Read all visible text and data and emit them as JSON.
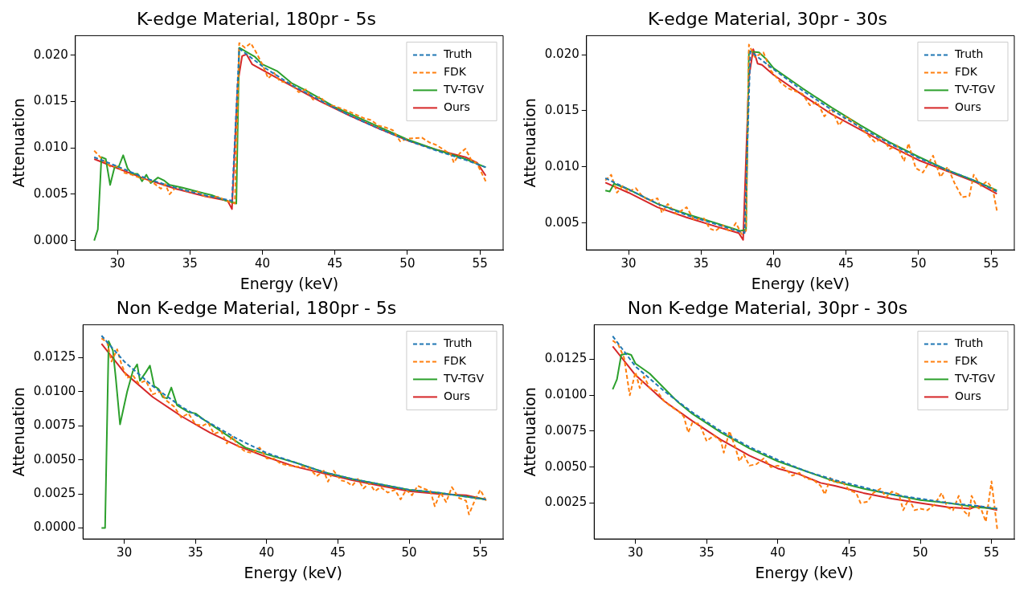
{
  "chart_data": [
    {
      "type": "line",
      "title": "K-edge Material, 180pr - 5s",
      "xlabel": "Energy (keV)",
      "ylabel": "Attenuation",
      "legend": "top right",
      "grid": false,
      "xlim": [
        27.1,
        56.6
      ],
      "xticks": [
        30,
        35,
        40,
        45,
        50,
        55
      ],
      "ylim": [
        -0.001,
        0.0221
      ],
      "yticks": [
        {
          "value": 0,
          "label": "0.000"
        },
        {
          "value": 0.005,
          "label": "0.005"
        },
        {
          "value": 0.01,
          "label": "0.010"
        },
        {
          "value": 0.015,
          "label": "0.015"
        },
        {
          "value": 0.02,
          "label": "0.020"
        }
      ],
      "series": [
        {
          "name": "Truth",
          "color": "#1f77b4",
          "line_style": "dashed",
          "x": [
            28.4,
            30,
            32,
            34,
            36,
            37.9,
            38.4,
            40,
            42,
            44,
            46,
            48,
            50,
            52,
            54,
            55.4
          ],
          "values": [
            0.009,
            0.008,
            0.0067,
            0.0057,
            0.0049,
            0.0043,
            0.0207,
            0.0188,
            0.0168,
            0.0151,
            0.0135,
            0.0121,
            0.0108,
            0.0097,
            0.0087,
            0.0079
          ]
        },
        {
          "name": "FDK",
          "color": "#ff7f0e",
          "line_style": "dashed",
          "x": [
            28.4,
            29,
            29.5,
            30,
            30.5,
            31,
            31.5,
            32,
            32.5,
            33,
            33.3,
            33.6,
            34,
            34.5,
            35,
            35.5,
            36,
            36.5,
            37,
            37.5,
            38.1,
            38.4,
            38.8,
            39.2,
            39.6,
            40,
            40.4,
            40.8,
            41.2,
            42,
            42.5,
            43,
            43.5,
            44,
            44.5,
            45,
            46,
            47,
            47.5,
            48,
            48.5,
            49,
            49.5,
            50,
            51,
            51.5,
            52,
            53,
            53.2,
            53.6,
            54,
            54.4,
            54.8,
            55.4
          ],
          "values": [
            0.0097,
            0.0087,
            0.008,
            0.008,
            0.0073,
            0.0071,
            0.0068,
            0.0066,
            0.0062,
            0.0056,
            0.0061,
            0.005,
            0.0057,
            0.0055,
            0.0052,
            0.0053,
            0.0048,
            0.0047,
            0.0047,
            0.0043,
            0.004,
            0.0213,
            0.0208,
            0.0213,
            0.0202,
            0.019,
            0.0175,
            0.0181,
            0.0172,
            0.0169,
            0.016,
            0.0163,
            0.0152,
            0.0155,
            0.0146,
            0.0145,
            0.0139,
            0.0132,
            0.013,
            0.0124,
            0.0122,
            0.0119,
            0.0107,
            0.011,
            0.0111,
            0.0106,
            0.0103,
            0.0093,
            0.0084,
            0.0094,
            0.0099,
            0.0087,
            0.0083,
            0.0064
          ]
        },
        {
          "name": "TV-TGV",
          "color": "#2ca02c",
          "line_style": "solid",
          "x": [
            28.4,
            28.65,
            28.9,
            29.2,
            29.5,
            29.8,
            30.1,
            30.4,
            30.7,
            31,
            31.4,
            31.7,
            32,
            32.3,
            32.8,
            33.2,
            33.6,
            34.5,
            35.5,
            36.5,
            37.5,
            38,
            38.2,
            38.4,
            39.5,
            40,
            41,
            42,
            43,
            44,
            45,
            46,
            48,
            50,
            52,
            54,
            55.4
          ],
          "values": [
            0,
            0.0012,
            0.009,
            0.0088,
            0.006,
            0.0079,
            0.008,
            0.0092,
            0.0078,
            0.0072,
            0.0072,
            0.0064,
            0.0071,
            0.0062,
            0.0068,
            0.0065,
            0.006,
            0.0057,
            0.0053,
            0.0049,
            0.0043,
            0.0041,
            0.004,
            0.0208,
            0.0198,
            0.019,
            0.0183,
            0.017,
            0.0162,
            0.0153,
            0.0144,
            0.0137,
            0.0123,
            0.0109,
            0.0098,
            0.0088,
            0.0079
          ]
        },
        {
          "name": "Ours",
          "color": "#d62728",
          "line_style": "solid",
          "x": [
            28.4,
            30,
            32,
            34,
            36,
            37.6,
            37.9,
            38.3,
            38.6,
            38.9,
            39.3,
            40,
            42,
            44,
            46,
            48,
            50,
            52,
            54,
            54.8,
            55.4
          ],
          "values": [
            0.0088,
            0.0078,
            0.0066,
            0.0056,
            0.0048,
            0.0043,
            0.0034,
            0.017,
            0.0199,
            0.0201,
            0.019,
            0.0184,
            0.0167,
            0.015,
            0.0135,
            0.0121,
            0.0108,
            0.0098,
            0.009,
            0.0084,
            0.007
          ]
        }
      ]
    },
    {
      "type": "line",
      "title": "K-edge Material, 30pr - 30s",
      "xlabel": "Energy (keV)",
      "ylabel": "Attenuation",
      "legend": "top right",
      "grid": false,
      "xlim": [
        27.1,
        56.6
      ],
      "xticks": [
        30,
        35,
        40,
        45,
        50,
        55
      ],
      "ylim": [
        0.0026,
        0.0217
      ],
      "yticks": [
        {
          "value": 0.005,
          "label": "0.005"
        },
        {
          "value": 0.01,
          "label": "0.010"
        },
        {
          "value": 0.015,
          "label": "0.015"
        },
        {
          "value": 0.02,
          "label": "0.020"
        }
      ],
      "series": [
        {
          "name": "Truth",
          "color": "#1f77b4",
          "line_style": "dashed",
          "x": [
            28.4,
            30,
            32,
            34,
            36,
            38,
            38.4,
            40,
            42,
            44,
            46,
            48,
            50,
            52,
            54,
            55.4
          ],
          "values": [
            0.009,
            0.008,
            0.0067,
            0.0057,
            0.0049,
            0.0041,
            0.0203,
            0.0187,
            0.0168,
            0.0151,
            0.0135,
            0.0121,
            0.0108,
            0.0097,
            0.0087,
            0.0078
          ]
        },
        {
          "name": "FDK",
          "color": "#ff7f0e",
          "line_style": "dashed",
          "x": [
            28.4,
            28.8,
            29.2,
            29.6,
            30,
            30.5,
            31,
            31.5,
            32,
            32.3,
            32.7,
            33.3,
            34,
            34.5,
            35.2,
            35.6,
            36,
            36.5,
            37,
            37.4,
            37.8,
            38.1,
            38.3,
            38.7,
            39.3,
            39.8,
            40.5,
            41,
            42,
            42.5,
            43,
            43.5,
            44,
            44.5,
            45,
            46,
            47,
            47.5,
            48,
            48.5,
            49,
            49.3,
            49.8,
            50.3,
            51,
            51.5,
            52,
            52.5,
            53,
            53.5,
            53.8,
            54.3,
            54.7,
            55.1,
            55.4
          ],
          "values": [
            0.0088,
            0.0093,
            0.0077,
            0.0083,
            0.0078,
            0.0081,
            0.0073,
            0.007,
            0.0072,
            0.0059,
            0.0067,
            0.0058,
            0.0064,
            0.0053,
            0.0054,
            0.0045,
            0.0043,
            0.0048,
            0.0042,
            0.005,
            0.004,
            0.0043,
            0.0209,
            0.0198,
            0.0202,
            0.0186,
            0.0175,
            0.017,
            0.0165,
            0.0155,
            0.0158,
            0.0145,
            0.0152,
            0.0137,
            0.0145,
            0.0135,
            0.0122,
            0.0126,
            0.0116,
            0.0119,
            0.0105,
            0.0121,
            0.0099,
            0.0095,
            0.011,
            0.0091,
            0.01,
            0.0085,
            0.0073,
            0.0074,
            0.0093,
            0.0083,
            0.0087,
            0.0081,
            0.0061
          ]
        },
        {
          "name": "TV-TGV",
          "color": "#2ca02c",
          "line_style": "solid",
          "x": [
            28.4,
            28.7,
            29,
            30,
            32,
            34,
            36,
            37.7,
            38.1,
            38.3,
            39,
            39.5,
            40,
            42,
            44,
            46,
            48,
            50,
            52,
            54,
            55.4
          ],
          "values": [
            0.0079,
            0.0078,
            0.0085,
            0.008,
            0.0067,
            0.0058,
            0.005,
            0.0043,
            0.0044,
            0.0203,
            0.0202,
            0.0196,
            0.0188,
            0.017,
            0.0153,
            0.0137,
            0.0122,
            0.0109,
            0.0097,
            0.0087,
            0.0079
          ]
        },
        {
          "name": "Ours",
          "color": "#d62728",
          "line_style": "solid",
          "x": [
            28.4,
            30,
            32,
            34,
            36,
            37.6,
            37.9,
            38.3,
            38.6,
            38.9,
            39.2,
            40,
            42,
            44,
            46,
            48,
            50,
            52,
            54,
            55.4
          ],
          "values": [
            0.0086,
            0.0077,
            0.0064,
            0.0055,
            0.0047,
            0.0041,
            0.0035,
            0.018,
            0.0205,
            0.0192,
            0.0191,
            0.0182,
            0.0164,
            0.0147,
            0.0133,
            0.0119,
            0.0106,
            0.0096,
            0.0086,
            0.0076
          ]
        }
      ]
    },
    {
      "type": "line",
      "title": "Non K-edge Material, 180pr - 5s",
      "xlabel": "Energy (keV)",
      "ylabel": "Attenuation",
      "legend": "top right",
      "grid": false,
      "xlim": [
        27.1,
        56.6
      ],
      "xticks": [
        30,
        35,
        40,
        45,
        50,
        55
      ],
      "ylim": [
        -0.0008,
        0.0149
      ],
      "yticks": [
        {
          "value": 0,
          "label": "0.0000"
        },
        {
          "value": 0.0025,
          "label": "0.0025"
        },
        {
          "value": 0.005,
          "label": "0.0050"
        },
        {
          "value": 0.0075,
          "label": "0.0075"
        },
        {
          "value": 0.01,
          "label": "0.0100"
        },
        {
          "value": 0.0125,
          "label": "0.0125"
        }
      ],
      "series": [
        {
          "name": "Truth",
          "color": "#1f77b4",
          "line_style": "dashed",
          "x": [
            28.4,
            30,
            32,
            34,
            36,
            38,
            40,
            42,
            44,
            46,
            48,
            50,
            52,
            54,
            55.4
          ],
          "values": [
            0.0141,
            0.0122,
            0.0104,
            0.0089,
            0.0077,
            0.0065,
            0.0055,
            0.0048,
            0.0041,
            0.0036,
            0.0032,
            0.0028,
            0.0026,
            0.0023,
            0.0021
          ]
        },
        {
          "name": "FDK",
          "color": "#ff7f0e",
          "line_style": "dashed",
          "x": [
            28.4,
            28.8,
            29.1,
            29.5,
            29.8,
            30.2,
            30.6,
            31,
            31.5,
            32,
            32.5,
            33,
            33.5,
            34,
            34.5,
            35,
            35.5,
            35.9,
            36.3,
            36.8,
            37.2,
            37.6,
            38,
            38.5,
            39,
            39.5,
            40,
            40.5,
            41,
            41.5,
            42,
            42.5,
            43,
            43.5,
            44,
            44.3,
            44.7,
            45.2,
            45.6,
            46,
            46.4,
            46.8,
            47.2,
            47.6,
            48,
            48.5,
            49,
            49.4,
            49.8,
            50.2,
            50.6,
            51,
            51.5,
            51.8,
            52.2,
            52.6,
            53,
            53.5,
            54,
            54.2,
            54.6,
            55,
            55.4
          ],
          "values": [
            0.0139,
            0.0136,
            0.0122,
            0.0131,
            0.012,
            0.011,
            0.0112,
            0.0106,
            0.0108,
            0.0098,
            0.01,
            0.0093,
            0.0089,
            0.0081,
            0.0084,
            0.0076,
            0.0075,
            0.0077,
            0.0069,
            0.0071,
            0.0062,
            0.0067,
            0.006,
            0.0056,
            0.0055,
            0.0059,
            0.0051,
            0.0051,
            0.0047,
            0.0046,
            0.0045,
            0.0045,
            0.0044,
            0.0038,
            0.0042,
            0.0034,
            0.0042,
            0.0035,
            0.0034,
            0.0031,
            0.0036,
            0.0029,
            0.0033,
            0.0027,
            0.003,
            0.0026,
            0.0028,
            0.0021,
            0.0028,
            0.0024,
            0.0031,
            0.0029,
            0.0027,
            0.0016,
            0.0026,
            0.0019,
            0.003,
            0.0022,
            0.002,
            0.001,
            0.002,
            0.0028,
            0.002
          ]
        },
        {
          "name": "TV-TGV",
          "color": "#2ca02c",
          "line_style": "solid",
          "x": [
            28.4,
            28.65,
            28.9,
            29.2,
            29.4,
            29.7,
            30.2,
            30.6,
            30.9,
            31.1,
            31.5,
            31.8,
            32.1,
            32.4,
            32.7,
            33,
            33.3,
            33.7,
            34.5,
            35,
            35.5,
            36.5,
            37.5,
            38.5,
            40,
            42,
            44,
            46,
            48,
            50,
            52,
            54,
            55.4
          ],
          "values": [
            0,
            0,
            0.0137,
            0.013,
            0.011,
            0.0076,
            0.01,
            0.0115,
            0.012,
            0.0108,
            0.0114,
            0.0119,
            0.0104,
            0.0102,
            0.0096,
            0.0095,
            0.0103,
            0.009,
            0.0085,
            0.0084,
            0.008,
            0.0073,
            0.0066,
            0.0059,
            0.0054,
            0.0048,
            0.0041,
            0.0036,
            0.0032,
            0.0028,
            0.0026,
            0.0023,
            0.0021
          ]
        },
        {
          "name": "Ours",
          "color": "#d62728",
          "line_style": "solid",
          "x": [
            28.4,
            30,
            32,
            34,
            36,
            38,
            40,
            42,
            44,
            46,
            48,
            50,
            52,
            54,
            55.4
          ],
          "values": [
            0.0135,
            0.0114,
            0.0096,
            0.0082,
            0.007,
            0.006,
            0.0052,
            0.0045,
            0.004,
            0.0035,
            0.0031,
            0.0027,
            0.0025,
            0.0024,
            0.0021
          ]
        }
      ]
    },
    {
      "type": "line",
      "title": "Non K-edge Material, 30pr - 30s",
      "xlabel": "Energy (keV)",
      "ylabel": "Attenuation",
      "legend": "top right",
      "grid": false,
      "xlim": [
        27.1,
        56.6
      ],
      "xticks": [
        30,
        35,
        40,
        45,
        50,
        55
      ],
      "ylim": [
        0,
        0.0149
      ],
      "yticks": [
        {
          "value": 0.0025,
          "label": "0.0025"
        },
        {
          "value": 0.005,
          "label": "0.0050"
        },
        {
          "value": 0.0075,
          "label": "0.0075"
        },
        {
          "value": 0.01,
          "label": "0.0100"
        },
        {
          "value": 0.0125,
          "label": "0.0125"
        }
      ],
      "series": [
        {
          "name": "Truth",
          "color": "#1f77b4",
          "line_style": "dashed",
          "x": [
            28.4,
            30,
            32,
            34,
            36,
            38,
            40,
            42,
            44,
            46,
            48,
            50,
            52,
            54,
            55.4
          ],
          "values": [
            0.0141,
            0.012,
            0.0103,
            0.0088,
            0.0075,
            0.0064,
            0.0055,
            0.0047,
            0.0041,
            0.0036,
            0.0031,
            0.0028,
            0.0025,
            0.0023,
            0.0021
          ]
        },
        {
          "name": "FDK",
          "color": "#ff7f0e",
          "line_style": "dashed",
          "x": [
            28.4,
            28.8,
            29.2,
            29.6,
            30,
            30.3,
            30.6,
            31,
            31.5,
            32,
            32.5,
            33,
            33.4,
            33.7,
            34,
            34.5,
            35,
            35.5,
            36,
            36.2,
            36.6,
            37,
            37.3,
            37.6,
            38,
            38.5,
            39,
            39.5,
            40,
            40.5,
            41,
            41.5,
            42,
            42.5,
            43,
            43.3,
            43.7,
            44,
            44.5,
            45,
            45.5,
            45.8,
            46.3,
            46.7,
            47.2,
            47.6,
            48,
            48.5,
            48.8,
            49.2,
            49.6,
            50,
            50.5,
            51,
            51.5,
            51.9,
            52.3,
            52.7,
            53,
            53.4,
            53.6,
            54,
            54.3,
            54.6,
            55,
            55.4
          ],
          "values": [
            0.0138,
            0.0135,
            0.0126,
            0.01,
            0.0116,
            0.0105,
            0.0113,
            0.0105,
            0.0103,
            0.0096,
            0.0092,
            0.0089,
            0.0085,
            0.0074,
            0.0081,
            0.008,
            0.0068,
            0.0072,
            0.0068,
            0.006,
            0.0075,
            0.0064,
            0.0054,
            0.0059,
            0.0051,
            0.0052,
            0.0056,
            0.005,
            0.0051,
            0.0049,
            0.0044,
            0.0046,
            0.0042,
            0.0041,
            0.0037,
            0.0031,
            0.0043,
            0.0039,
            0.004,
            0.0034,
            0.0032,
            0.0025,
            0.0026,
            0.0032,
            0.0035,
            0.0029,
            0.0033,
            0.0031,
            0.002,
            0.0028,
            0.002,
            0.0021,
            0.002,
            0.0024,
            0.0032,
            0.0022,
            0.002,
            0.003,
            0.002,
            0.0016,
            0.003,
            0.0022,
            0.002,
            0.0012,
            0.004,
            0.0007
          ]
        },
        {
          "name": "TV-TGV",
          "color": "#2ca02c",
          "line_style": "solid",
          "x": [
            28.4,
            28.7,
            29,
            29.4,
            29.7,
            30,
            31,
            32,
            33,
            34,
            36,
            38,
            40,
            42,
            44,
            46,
            48,
            50,
            52,
            54,
            55.4
          ],
          "values": [
            0.0104,
            0.0111,
            0.0128,
            0.0129,
            0.0128,
            0.0122,
            0.0115,
            0.0105,
            0.0095,
            0.0087,
            0.0074,
            0.0063,
            0.0054,
            0.0047,
            0.004,
            0.0035,
            0.0031,
            0.0027,
            0.0025,
            0.0022,
            0.0021
          ]
        },
        {
          "name": "Ours",
          "color": "#d62728",
          "line_style": "solid",
          "x": [
            28.4,
            30,
            32,
            34,
            36,
            38,
            40,
            41.5,
            43,
            44,
            46,
            48,
            50,
            52,
            53.5,
            54,
            55.4
          ],
          "values": [
            0.0134,
            0.0114,
            0.0096,
            0.0082,
            0.0069,
            0.0058,
            0.0049,
            0.0045,
            0.0039,
            0.0037,
            0.0032,
            0.0028,
            0.0025,
            0.0022,
            0.0021,
            0.0023,
            0.002
          ]
        }
      ]
    }
  ]
}
